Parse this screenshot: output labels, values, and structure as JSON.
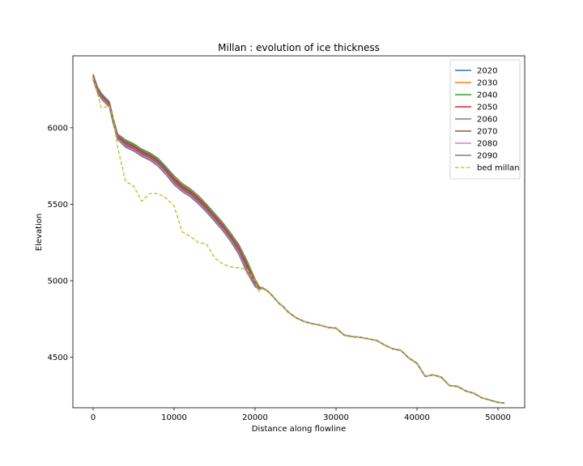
{
  "chart_data": {
    "type": "line",
    "title": "Millan : evolution of ice thickness",
    "xlabel": "Distance along flowline",
    "ylabel": "Elevation",
    "xlim": [
      -2500,
      53300
    ],
    "ylim": [
      4170,
      6470
    ],
    "xticks": [
      0,
      10000,
      20000,
      30000,
      40000,
      50000
    ],
    "yticks": [
      4500,
      5000,
      5500,
      6000
    ],
    "legend_position": "upper right",
    "grid": false,
    "x": [
      0,
      500,
      1000,
      2000,
      2500,
      3000,
      4000,
      5000,
      6000,
      7000,
      8000,
      9000,
      10000,
      11000,
      12000,
      13000,
      14000,
      15000,
      16000,
      17000,
      18000,
      19000,
      20000,
      20500,
      21000,
      21500,
      22000,
      23000,
      23500,
      24000,
      25000,
      26000,
      27000,
      28000,
      29000,
      30000,
      31000,
      32000,
      33000,
      34000,
      35000,
      36000,
      37000,
      38000,
      39000,
      40000,
      41000,
      42000,
      43000,
      44000,
      45000,
      46000,
      47000,
      48000,
      49000,
      50000,
      50800
    ],
    "series": [
      {
        "name": "2020",
        "color": "#1f77b4",
        "dash": false,
        "values": [
          6350,
          6270,
          6225,
          6170,
          6060,
          5960,
          5920,
          5895,
          5860,
          5835,
          5800,
          5745,
          5685,
          5635,
          5600,
          5555,
          5500,
          5440,
          5380,
          5310,
          5235,
          5130,
          5010,
          4960,
          4950,
          4935,
          4910,
          4850,
          4830,
          4800,
          4760,
          4735,
          4720,
          4710,
          4695,
          4690,
          4645,
          4635,
          4630,
          4620,
          4610,
          4580,
          4555,
          4545,
          4495,
          4460,
          4375,
          4385,
          4370,
          4315,
          4310,
          4280,
          4265,
          4235,
          4220,
          4205,
          4200
        ]
      },
      {
        "name": "2030",
        "color": "#ff7f0e",
        "dash": false,
        "values": [
          6345,
          6265,
          6220,
          6165,
          6055,
          5955,
          5915,
          5890,
          5855,
          5830,
          5795,
          5740,
          5680,
          5630,
          5595,
          5550,
          5495,
          5435,
          5375,
          5305,
          5228,
          5120,
          5005,
          4958,
          4950,
          4935,
          4910,
          4850,
          4830,
          4800,
          4760,
          4735,
          4720,
          4710,
          4695,
          4690,
          4645,
          4635,
          4630,
          4620,
          4610,
          4580,
          4555,
          4545,
          4495,
          4460,
          4375,
          4385,
          4370,
          4315,
          4310,
          4280,
          4265,
          4235,
          4220,
          4205,
          4200
        ]
      },
      {
        "name": "2040",
        "color": "#2ca02c",
        "dash": false,
        "values": [
          6340,
          6260,
          6215,
          6160,
          6050,
          5950,
          5910,
          5885,
          5850,
          5825,
          5790,
          5735,
          5672,
          5622,
          5588,
          5542,
          5488,
          5428,
          5367,
          5297,
          5220,
          5110,
          4998,
          4955,
          4950,
          4935,
          4910,
          4850,
          4830,
          4800,
          4760,
          4735,
          4720,
          4710,
          4695,
          4690,
          4645,
          4635,
          4630,
          4620,
          4610,
          4580,
          4555,
          4545,
          4495,
          4460,
          4375,
          4385,
          4370,
          4315,
          4310,
          4280,
          4265,
          4235,
          4220,
          4205,
          4200
        ]
      },
      {
        "name": "2050",
        "color": "#d62728",
        "dash": false,
        "values": [
          6335,
          6255,
          6210,
          6155,
          6045,
          5945,
          5902,
          5878,
          5843,
          5818,
          5782,
          5726,
          5663,
          5614,
          5580,
          5534,
          5480,
          5420,
          5359,
          5288,
          5210,
          5098,
          4990,
          4952,
          4950,
          4935,
          4910,
          4850,
          4830,
          4800,
          4760,
          4735,
          4720,
          4710,
          4695,
          4690,
          4645,
          4635,
          4630,
          4620,
          4610,
          4580,
          4555,
          4545,
          4495,
          4460,
          4375,
          4385,
          4370,
          4315,
          4310,
          4280,
          4265,
          4235,
          4220,
          4205,
          4200
        ]
      },
      {
        "name": "2060",
        "color": "#9467bd",
        "dash": false,
        "values": [
          6330,
          6250,
          6205,
          6150,
          6040,
          5940,
          5895,
          5870,
          5835,
          5810,
          5774,
          5718,
          5654,
          5606,
          5572,
          5526,
          5472,
          5412,
          5351,
          5280,
          5200,
          5085,
          4982,
          4950,
          4950,
          4935,
          4910,
          4850,
          4830,
          4800,
          4760,
          4735,
          4720,
          4710,
          4695,
          4690,
          4645,
          4635,
          4630,
          4620,
          4610,
          4580,
          4555,
          4545,
          4495,
          4460,
          4375,
          4385,
          4370,
          4315,
          4310,
          4280,
          4265,
          4235,
          4220,
          4205,
          4200
        ]
      },
      {
        "name": "2070",
        "color": "#8c564b",
        "dash": false,
        "values": [
          6325,
          6245,
          6200,
          6145,
          6035,
          5935,
          5888,
          5862,
          5828,
          5802,
          5766,
          5710,
          5645,
          5598,
          5565,
          5518,
          5464,
          5404,
          5343,
          5272,
          5190,
          5075,
          4975,
          4948,
          4950,
          4935,
          4910,
          4850,
          4830,
          4800,
          4760,
          4735,
          4720,
          4710,
          4695,
          4690,
          4645,
          4635,
          4630,
          4620,
          4610,
          4580,
          4555,
          4545,
          4495,
          4460,
          4375,
          4385,
          4370,
          4315,
          4310,
          4280,
          4265,
          4235,
          4220,
          4205,
          4200
        ]
      },
      {
        "name": "2080",
        "color": "#e377c2",
        "dash": false,
        "values": [
          6320,
          6240,
          6195,
          6140,
          6030,
          5930,
          5880,
          5855,
          5820,
          5795,
          5758,
          5702,
          5636,
          5590,
          5557,
          5510,
          5456,
          5396,
          5335,
          5264,
          5180,
          5065,
          4968,
          4946,
          4950,
          4935,
          4910,
          4850,
          4830,
          4800,
          4760,
          4735,
          4720,
          4710,
          4695,
          4690,
          4645,
          4635,
          4630,
          4620,
          4610,
          4580,
          4555,
          4545,
          4495,
          4460,
          4375,
          4385,
          4370,
          4315,
          4310,
          4280,
          4265,
          4235,
          4220,
          4205,
          4200
        ]
      },
      {
        "name": "2090",
        "color": "#7f7f7f",
        "dash": false,
        "values": [
          6315,
          6235,
          6190,
          6135,
          6025,
          5925,
          5873,
          5848,
          5813,
          5788,
          5750,
          5694,
          5628,
          5583,
          5550,
          5503,
          5449,
          5389,
          5328,
          5257,
          5172,
          5055,
          4962,
          4944,
          4950,
          4935,
          4910,
          4850,
          4830,
          4800,
          4760,
          4735,
          4720,
          4710,
          4695,
          4690,
          4645,
          4635,
          4630,
          4620,
          4610,
          4580,
          4555,
          4545,
          4495,
          4460,
          4375,
          4385,
          4370,
          4315,
          4310,
          4280,
          4265,
          4235,
          4220,
          4205,
          4200
        ]
      },
      {
        "name": "bed millan",
        "color": "#bcbd22",
        "dash": true,
        "values": [
          6330,
          6230,
          6130,
          6140,
          6060,
          5880,
          5650,
          5620,
          5520,
          5570,
          5570,
          5540,
          5490,
          5320,
          5290,
          5250,
          5240,
          5150,
          5110,
          5090,
          5085,
          5075,
          5000,
          4930,
          4960,
          4935,
          4910,
          4850,
          4830,
          4800,
          4760,
          4735,
          4720,
          4710,
          4695,
          4690,
          4645,
          4635,
          4630,
          4620,
          4610,
          4580,
          4555,
          4545,
          4495,
          4460,
          4375,
          4385,
          4370,
          4315,
          4310,
          4280,
          4265,
          4235,
          4220,
          4205,
          4200
        ]
      }
    ]
  }
}
